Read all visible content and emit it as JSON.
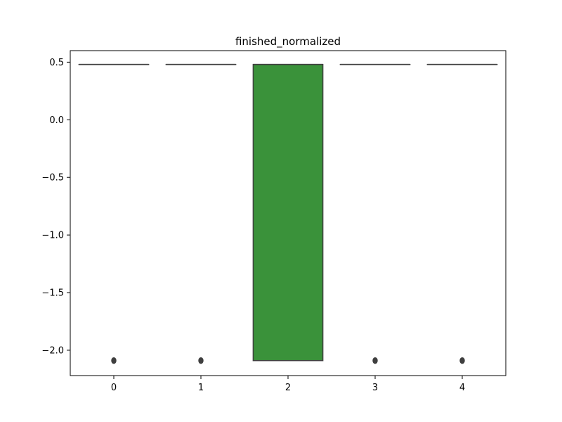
{
  "chart_data": {
    "type": "box",
    "title": "finished_normalized",
    "xlabel": "",
    "ylabel": "",
    "categories": [
      "0",
      "1",
      "2",
      "3",
      "4"
    ],
    "ylim": [
      -2.22,
      0.6
    ],
    "yticks": [
      0.5,
      0.0,
      -0.5,
      -1.0,
      -1.5,
      -2.0
    ],
    "ytick_labels": [
      "0.5",
      "0.0",
      "−0.5",
      "−1.0",
      "−1.5",
      "−2.0"
    ],
    "grid": false,
    "boxes": [
      {
        "category": "0",
        "q1": 0.48,
        "median": 0.48,
        "q3": 0.48,
        "whisker_low": 0.48,
        "whisker_high": 0.48,
        "outliers": [
          -2.09
        ],
        "color": "#1f77b4"
      },
      {
        "category": "1",
        "q1": 0.48,
        "median": 0.48,
        "q3": 0.48,
        "whisker_low": 0.48,
        "whisker_high": 0.48,
        "outliers": [
          -2.09
        ],
        "color": "#ff7f0e"
      },
      {
        "category": "2",
        "q1": -2.09,
        "median": 0.48,
        "q3": 0.48,
        "whisker_low": -2.09,
        "whisker_high": 0.48,
        "outliers": [],
        "color": "#3a923a"
      },
      {
        "category": "3",
        "q1": 0.48,
        "median": 0.48,
        "q3": 0.48,
        "whisker_low": 0.48,
        "whisker_high": 0.48,
        "outliers": [
          -2.09
        ],
        "color": "#c03d3e"
      },
      {
        "category": "4",
        "q1": 0.48,
        "median": 0.48,
        "q3": 0.48,
        "whisker_low": 0.48,
        "whisker_high": 0.48,
        "outliers": [
          -2.09
        ],
        "color": "#9372b2"
      }
    ],
    "edge_color": "#3f3f3f"
  }
}
